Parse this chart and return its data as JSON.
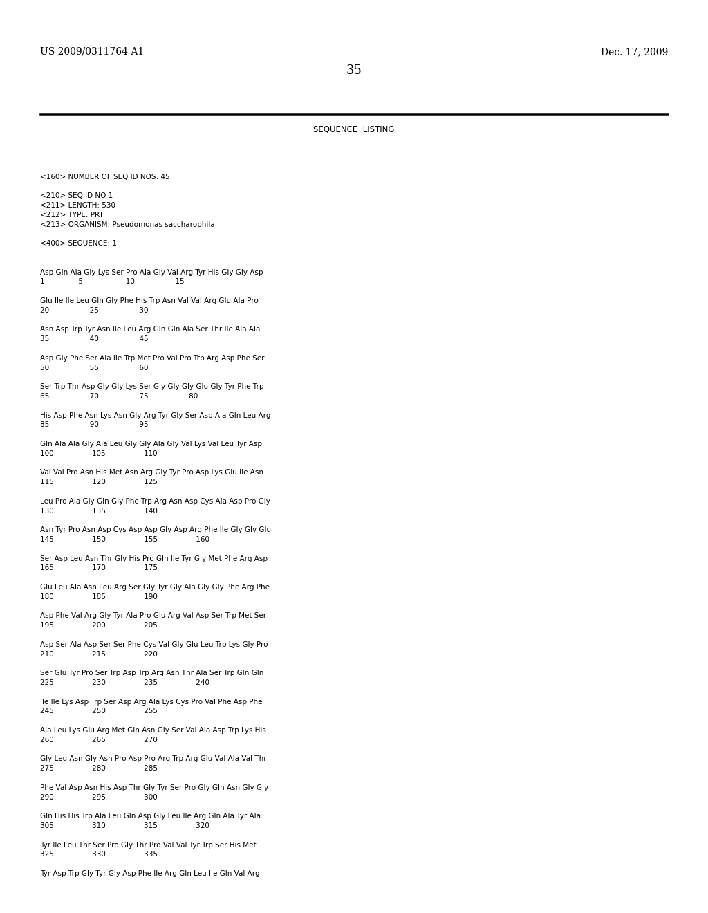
{
  "header_left": "US 2009/0311764 A1",
  "header_right": "Dec. 17, 2009",
  "page_number": "35",
  "background_color": "#ffffff",
  "text_color": "#000000",
  "title": "SEQUENCE  LISTING",
  "lines": [
    "",
    "",
    "<160> NUMBER OF SEQ ID NOS: 45",
    "",
    "<210> SEQ ID NO 1",
    "<211> LENGTH: 530",
    "<212> TYPE: PRT",
    "<213> ORGANISM: Pseudomonas saccharophila",
    "",
    "<400> SEQUENCE: 1",
    "",
    "",
    "Asp Gln Ala Gly Lys Ser Pro Ala Gly Val Arg Tyr His Gly Gly Asp",
    "1               5                   10                  15",
    "",
    "Glu Ile Ile Leu Gln Gly Phe His Trp Asn Val Val Arg Glu Ala Pro",
    "20                  25                  30",
    "",
    "Asn Asp Trp Tyr Asn Ile Leu Arg Gln Gln Ala Ser Thr Ile Ala Ala",
    "35                  40                  45",
    "",
    "Asp Gly Phe Ser Ala Ile Trp Met Pro Val Pro Trp Arg Asp Phe Ser",
    "50                  55                  60",
    "",
    "Ser Trp Thr Asp Gly Gly Lys Ser Gly Gly Gly Glu Gly Tyr Phe Trp",
    "65                  70                  75                  80",
    "",
    "His Asp Phe Asn Lys Asn Gly Arg Tyr Gly Ser Asp Ala Gln Leu Arg",
    "85                  90                  95",
    "",
    "Gln Ala Ala Gly Ala Leu Gly Gly Ala Gly Val Lys Val Leu Tyr Asp",
    "100                 105                 110",
    "",
    "Val Val Pro Asn His Met Asn Arg Gly Tyr Pro Asp Lys Glu Ile Asn",
    "115                 120                 125",
    "",
    "Leu Pro Ala Gly Gln Gly Phe Trp Arg Asn Asp Cys Ala Asp Pro Gly",
    "130                 135                 140",
    "",
    "Asn Tyr Pro Asn Asp Cys Asp Asp Gly Asp Arg Phe Ile Gly Gly Glu",
    "145                 150                 155                 160",
    "",
    "Ser Asp Leu Asn Thr Gly His Pro Gln Ile Tyr Gly Met Phe Arg Asp",
    "165                 170                 175",
    "",
    "Glu Leu Ala Asn Leu Arg Ser Gly Tyr Gly Ala Gly Gly Phe Arg Phe",
    "180                 185                 190",
    "",
    "Asp Phe Val Arg Gly Tyr Ala Pro Glu Arg Val Asp Ser Trp Met Ser",
    "195                 200                 205",
    "",
    "Asp Ser Ala Asp Ser Ser Phe Cys Val Gly Glu Leu Trp Lys Gly Pro",
    "210                 215                 220",
    "",
    "Ser Glu Tyr Pro Ser Trp Asp Trp Arg Asn Thr Ala Ser Trp Gln Gln",
    "225                 230                 235                 240",
    "",
    "Ile Ile Lys Asp Trp Ser Asp Arg Ala Lys Cys Pro Val Phe Asp Phe",
    "245                 250                 255",
    "",
    "Ala Leu Lys Glu Arg Met Gln Asn Gly Ser Val Ala Asp Trp Lys His",
    "260                 265                 270",
    "",
    "Gly Leu Asn Gly Asn Pro Asp Pro Arg Trp Arg Glu Val Ala Val Thr",
    "275                 280                 285",
    "",
    "Phe Val Asp Asn His Asp Thr Gly Tyr Ser Pro Gly Gln Asn Gly Gly",
    "290                 295                 300",
    "",
    "Gln His His Trp Ala Leu Gln Asp Gly Leu Ile Arg Gln Ala Tyr Ala",
    "305                 310                 315                 320",
    "",
    "Tyr Ile Leu Thr Ser Pro Gly Thr Pro Val Val Tyr Trp Ser His Met",
    "325                 330                 335",
    "",
    "Tyr Asp Trp Gly Tyr Gly Asp Phe Ile Arg Gln Leu Ile Gln Val Arg"
  ]
}
